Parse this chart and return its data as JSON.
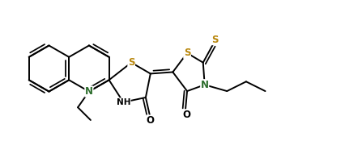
{
  "bg_color": "#ffffff",
  "bond_color": "#000000",
  "n_color": "#2d6e2d",
  "s_color": "#b8860b",
  "lw": 1.4,
  "figsize": [
    4.27,
    1.75
  ],
  "dpi": 100,
  "xlim": [
    0,
    427
  ],
  "ylim": [
    0,
    175
  ]
}
